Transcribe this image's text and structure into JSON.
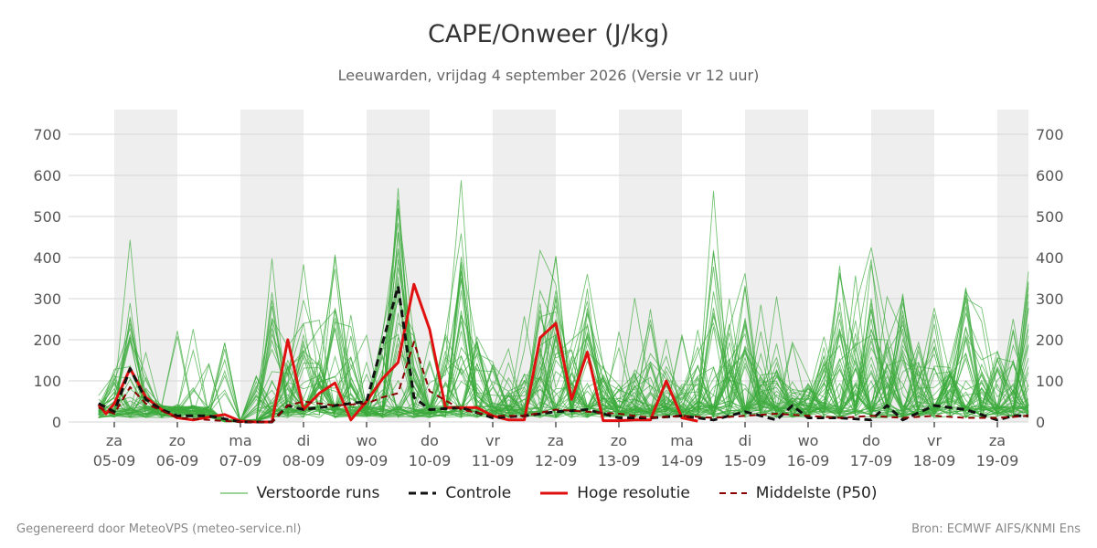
{
  "chart_data": {
    "type": "line",
    "title": "CAPE/Onweer (J/kg)",
    "subtitle": "Leeuwarden, vrijdag  4 september 2026 (Versie vr 12 uur)",
    "ylim": [
      0,
      760
    ],
    "yticks": [
      0,
      100,
      200,
      300,
      400,
      500,
      600,
      700
    ],
    "xlim": [
      0,
      15
    ],
    "xticks": [
      {
        "day": "za",
        "date": "05-09",
        "x": 0
      },
      {
        "day": "zo",
        "date": "06-09",
        "x": 1
      },
      {
        "day": "ma",
        "date": "07-09",
        "x": 2
      },
      {
        "day": "di",
        "date": "08-09",
        "x": 3
      },
      {
        "day": "wo",
        "date": "09-09",
        "x": 4
      },
      {
        "day": "do",
        "date": "10-09",
        "x": 5
      },
      {
        "day": "vr",
        "date": "11-09",
        "x": 6
      },
      {
        "day": "za",
        "date": "12-09",
        "x": 7
      },
      {
        "day": "zo",
        "date": "13-09",
        "x": 8
      },
      {
        "day": "ma",
        "date": "14-09",
        "x": 9
      },
      {
        "day": "di",
        "date": "15-09",
        "x": 10
      },
      {
        "day": "wo",
        "date": "16-09",
        "x": 11
      },
      {
        "day": "do",
        "date": "17-09",
        "x": 12
      },
      {
        "day": "vr",
        "date": "18-09",
        "x": 13
      },
      {
        "day": "za",
        "date": "19-09",
        "x": 14
      }
    ],
    "shaded_bands": [
      [
        0,
        1
      ],
      [
        2,
        3
      ],
      [
        4,
        5
      ],
      [
        6,
        7
      ],
      [
        8,
        9
      ],
      [
        10,
        11
      ],
      [
        12,
        13
      ],
      [
        14,
        14.5
      ]
    ],
    "grid": true,
    "legend_position": "bottom",
    "series": [
      {
        "name": "Hoge resolutie",
        "color": "#e01010",
        "style": "solid",
        "x": [
          -0.25,
          -0.13,
          0,
          0.25,
          0.5,
          0.75,
          1,
          1.25,
          1.5,
          1.75,
          2,
          2.25,
          2.5,
          2.75,
          3,
          3.25,
          3.5,
          3.75,
          4,
          4.25,
          4.5,
          4.75,
          5,
          5.25,
          5.5,
          5.75,
          6,
          6.25,
          6.5,
          6.75,
          7,
          7.25,
          7.5,
          7.75,
          8,
          8.25,
          8.5,
          8.75,
          9,
          9.25
        ],
        "y": [
          42,
          20,
          45,
          130,
          60,
          30,
          10,
          5,
          12,
          18,
          2,
          0,
          0,
          200,
          30,
          70,
          95,
          5,
          50,
          105,
          145,
          335,
          225,
          35,
          35,
          35,
          15,
          5,
          5,
          205,
          240,
          55,
          170,
          3,
          3,
          5,
          5,
          100,
          10,
          2
        ]
      },
      {
        "name": "Controle",
        "color": "#111111",
        "style": "dashed",
        "x": [
          -0.25,
          0,
          0.25,
          0.5,
          0.75,
          1,
          1.5,
          2,
          2.5,
          2.75,
          3,
          3.5,
          4,
          4.5,
          4.75,
          5,
          5.5,
          6,
          6.5,
          7,
          7.5,
          8,
          8.5,
          9,
          9.5,
          10,
          10.5,
          10.75,
          11,
          11.5,
          12,
          12.25,
          12.5,
          13,
          13.5,
          14,
          14.25,
          14.5
        ],
        "y": [
          45,
          25,
          130,
          55,
          30,
          15,
          15,
          0,
          0,
          40,
          30,
          40,
          50,
          330,
          60,
          30,
          35,
          10,
          15,
          25,
          30,
          10,
          10,
          15,
          5,
          25,
          5,
          40,
          10,
          10,
          5,
          40,
          5,
          40,
          30,
          5,
          15,
          15
        ]
      },
      {
        "name": "Middelste (P50)",
        "color": "#8b0000",
        "style": "dashed",
        "x": [
          -0.25,
          0,
          0.25,
          0.5,
          1,
          1.5,
          2,
          2.5,
          2.75,
          3,
          3.5,
          4,
          4.25,
          4.5,
          4.75,
          5,
          5.5,
          6,
          6.5,
          7,
          7.5,
          8,
          8.5,
          9,
          9.5,
          10,
          10.5,
          11,
          11.5,
          12,
          12.5,
          13,
          13.5,
          14,
          14.5
        ],
        "y": [
          35,
          20,
          85,
          45,
          10,
          5,
          0,
          0,
          40,
          50,
          40,
          45,
          60,
          70,
          195,
          75,
          30,
          15,
          15,
          30,
          25,
          20,
          10,
          15,
          10,
          15,
          20,
          15,
          10,
          15,
          10,
          15,
          10,
          10,
          15
        ]
      }
    ],
    "ensemble": {
      "name": "Verstoorde runs",
      "color": "#3aaa3a",
      "members": 50
    }
  },
  "legend": [
    {
      "label": "Verstoorde runs",
      "color": "#3aaa3a",
      "style": "thin"
    },
    {
      "label": "Controle",
      "color": "#111111",
      "style": "dashed"
    },
    {
      "label": "Hoge resolutie",
      "color": "#e01010",
      "style": "thick"
    },
    {
      "label": "Middelste (P50)",
      "color": "#8b0000",
      "style": "dashed-thin"
    }
  ],
  "footer": {
    "left": "Gegenereerd door MeteoVPS (meteo-service.nl)",
    "right": "Bron: ECMWF AIFS/KNMI Ens"
  }
}
